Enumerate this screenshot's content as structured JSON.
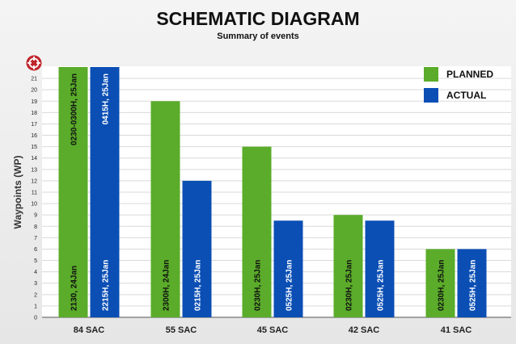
{
  "chart_data": {
    "type": "bar",
    "title": "SCHEMATIC DIAGRAM",
    "subtitle": "Summary of events",
    "ylabel": "Waypoints (WP)",
    "xlabel": "",
    "ylim": [
      0,
      22
    ],
    "yticks": [
      0,
      1,
      2,
      3,
      4,
      5,
      6,
      7,
      8,
      9,
      10,
      11,
      12,
      13,
      14,
      15,
      16,
      17,
      18,
      19,
      20,
      21
    ],
    "categories": [
      "84 SAC",
      "55 SAC",
      "45 SAC",
      "42 SAC",
      "41 SAC"
    ],
    "series": [
      {
        "name": "PLANNED",
        "color": "#5aac2a",
        "values": [
          22,
          19,
          15,
          9,
          6
        ],
        "labels_bottom": [
          "2130, 24Jan",
          "2300H, 24Jan",
          "0230H, 25Jan",
          "0230H, 25Jan",
          "0230H, 25Jan"
        ],
        "labels_top": [
          "0230-0300H, 25Jan",
          "",
          "",
          "",
          ""
        ]
      },
      {
        "name": "ACTUAL",
        "color": "#0b4fb5",
        "values": [
          22,
          12,
          8.5,
          8.5,
          6
        ],
        "labels_bottom": [
          "2215H, 25Jan",
          "0215H, 25Jan",
          "0525H, 25Jan",
          "0525H, 25Jan",
          "0525H, 25Jan"
        ],
        "labels_top": [
          "0415H, 25Jan",
          "",
          "",
          "",
          ""
        ]
      }
    ],
    "legend_position": "top-right",
    "grid": true
  },
  "icons": {
    "corner_icon": "crosshair-target-icon",
    "corner_icon_color": "#c0262c"
  }
}
